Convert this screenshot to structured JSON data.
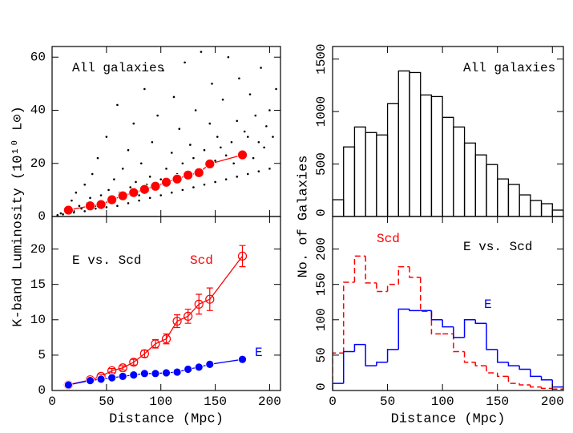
{
  "chart_data": [
    {
      "type": "scatter",
      "text": "All galaxies",
      "xlim": [
        0,
        210
      ],
      "ylim": [
        0,
        64
      ],
      "xticks": [
        0,
        50,
        100,
        150,
        200
      ],
      "xtick_labels": false,
      "yticks": [
        0,
        20,
        40,
        60
      ],
      "points": {
        "color": "#000000",
        "x": [
          5,
          8,
          12,
          15,
          18,
          20,
          22,
          25,
          27,
          30,
          32,
          35,
          37,
          40,
          42,
          45,
          47,
          50,
          52,
          55,
          57,
          60,
          62,
          65,
          67,
          70,
          72,
          75,
          77,
          80,
          82,
          85,
          87,
          90,
          92,
          95,
          97,
          100,
          102,
          105,
          107,
          110,
          112,
          115,
          117,
          120,
          122,
          125,
          127,
          130,
          132,
          135,
          137,
          140,
          142,
          145,
          147,
          150,
          152,
          155,
          157,
          160,
          162,
          165,
          167,
          170,
          172,
          175,
          177,
          180,
          182,
          185,
          187,
          190,
          192,
          195,
          197,
          200,
          203,
          206,
          10,
          20,
          30,
          40,
          50,
          60,
          70,
          80,
          90,
          100,
          110,
          120,
          130,
          140,
          150,
          160,
          170,
          180,
          190,
          200
        ],
        "y": [
          0.5,
          1.2,
          3,
          1.5,
          6,
          2,
          9,
          4,
          3,
          12,
          5,
          7,
          16,
          4,
          22,
          8,
          5,
          30,
          10,
          6,
          14,
          42,
          9,
          18,
          7,
          25,
          11,
          35,
          13,
          8,
          20,
          48,
          12,
          15,
          28,
          10,
          38,
          14,
          55,
          18,
          12,
          24,
          45,
          16,
          33,
          20,
          58,
          15,
          27,
          22,
          40,
          17,
          62,
          25,
          19,
          35,
          50,
          21,
          30,
          26,
          44,
          23,
          60,
          28,
          20,
          36,
          52,
          24,
          32,
          30,
          46,
          22,
          38,
          28,
          56,
          26,
          34,
          40,
          30,
          48,
          0.8,
          1.5,
          2,
          3,
          3.5,
          4,
          5,
          6,
          7,
          8,
          9,
          10,
          11,
          12,
          13,
          14,
          15,
          16,
          17,
          18
        ]
      },
      "series": [
        {
          "color": "#ff0000",
          "marker": "filled",
          "x": [
            15,
            35,
            45,
            55,
            65,
            75,
            85,
            95,
            105,
            115,
            125,
            135,
            145,
            175
          ],
          "values": [
            2.4,
            4,
            4.5,
            6.3,
            7.8,
            9,
            10.2,
            11.4,
            12.9,
            14.1,
            15.6,
            16.5,
            19.8,
            23.2
          ]
        }
      ]
    },
    {
      "type": "line",
      "text": "E vs. Scd",
      "xlabel": "Distance (Mpc)",
      "ylabel": "K-band Luminosity (10¹⁰ L⊙)",
      "xlim": [
        0,
        210
      ],
      "ylim": [
        0,
        24.6
      ],
      "xticks": [
        0,
        50,
        100,
        150,
        200
      ],
      "xtick_labels": true,
      "yticks": [
        0,
        5,
        10,
        15,
        20
      ],
      "series": [
        {
          "name": "Scd",
          "color": "#ff0000",
          "marker": "open",
          "x": [
            15,
            35,
            45,
            55,
            65,
            75,
            85,
            95,
            105,
            115,
            125,
            135,
            145,
            175
          ],
          "values": [
            0.8,
            1.5,
            2.0,
            2.8,
            3.2,
            4.0,
            5.2,
            6.6,
            7.3,
            9.8,
            10.5,
            12.2,
            12.9,
            19.0
          ],
          "errors": [
            0.3,
            0.3,
            0.3,
            0.3,
            0.3,
            0.4,
            0.5,
            0.6,
            0.7,
            0.9,
            1.0,
            1.4,
            1.6,
            1.5
          ]
        },
        {
          "name": "E",
          "color": "#0000ff",
          "marker": "filled",
          "x": [
            15,
            35,
            45,
            55,
            65,
            75,
            85,
            95,
            105,
            115,
            125,
            135,
            145,
            175
          ],
          "values": [
            0.8,
            1.4,
            1.6,
            1.8,
            2.0,
            2.2,
            2.4,
            2.4,
            2.5,
            2.6,
            3.0,
            3.3,
            3.7,
            4.4
          ],
          "errors": [
            0.3,
            0.3,
            0.3,
            0.3,
            0.3,
            0.3,
            0.3,
            0.3,
            0.3,
            0.3,
            0.3,
            0.3,
            0.3,
            0.3
          ]
        }
      ]
    },
    {
      "type": "histogram",
      "text": "All galaxies",
      "xlim": [
        0,
        210
      ],
      "ylim": [
        0,
        1620
      ],
      "xticks": [
        0,
        50,
        100,
        150,
        200
      ],
      "xtick_labels": false,
      "yticks": [
        0,
        500,
        1000,
        1500
      ],
      "ytick_rotation": -90,
      "bins": [
        0,
        10,
        20,
        30,
        40,
        50,
        60,
        70,
        80,
        90,
        100,
        110,
        120,
        130,
        140,
        150,
        160,
        170,
        180,
        190,
        200,
        210
      ],
      "series": [
        {
          "color": "#000000",
          "style": "bars",
          "values": [
            160,
            663,
            853,
            800,
            777,
            1075,
            1387,
            1372,
            1158,
            1143,
            945,
            853,
            700,
            587,
            495,
            358,
            305,
            206,
            152,
            122,
            61
          ]
        }
      ]
    },
    {
      "type": "histogram",
      "text": "E vs. Scd",
      "xlabel": "Distance (Mpc)",
      "ylabel": "No. of Galaxies",
      "xlim": [
        0,
        210
      ],
      "ylim": [
        0,
        246
      ],
      "xticks": [
        0,
        50,
        100,
        150,
        200
      ],
      "xtick_labels": true,
      "yticks": [
        0,
        50,
        100,
        150,
        200
      ],
      "ytick_rotation": -90,
      "bins": [
        0,
        10,
        20,
        30,
        40,
        50,
        60,
        70,
        80,
        90,
        100,
        110,
        120,
        130,
        140,
        150,
        160,
        170,
        180,
        190,
        200,
        210
      ],
      "series": [
        {
          "name": "Scd",
          "color": "#ff0000",
          "style": "dashed",
          "values": [
            53,
            153,
            190,
            152,
            140,
            150,
            175,
            160,
            112,
            80,
            80,
            55,
            40,
            35,
            25,
            20,
            10,
            8,
            5,
            3,
            2
          ]
        },
        {
          "name": "E",
          "color": "#0000ff",
          "style": "solid",
          "values": [
            10,
            55,
            65,
            35,
            40,
            58,
            115,
            113,
            113,
            100,
            90,
            75,
            100,
            95,
            58,
            40,
            35,
            30,
            20,
            15,
            5
          ]
        }
      ]
    }
  ]
}
